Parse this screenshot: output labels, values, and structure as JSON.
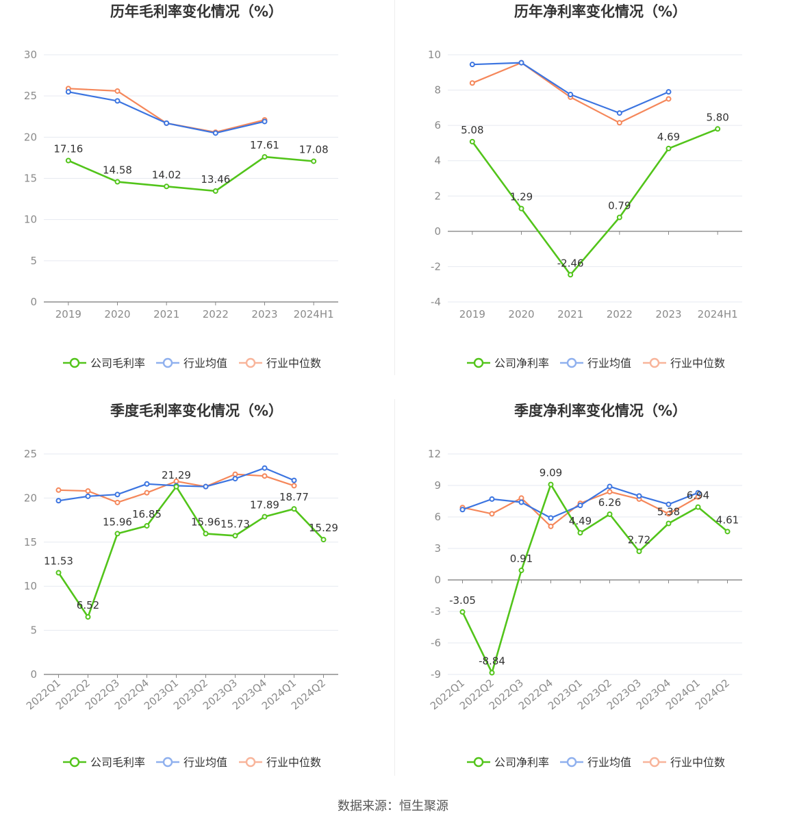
{
  "source": "数据来源：恒生聚源",
  "colors": {
    "company": "#52c41a",
    "avg": "#3b74e0",
    "median": "#f5875a"
  },
  "chart_data": [
    {
      "type": "line",
      "title": "历年毛利率变化情况（%）",
      "categories": [
        "2019",
        "2020",
        "2021",
        "2022",
        "2023",
        "2024H1"
      ],
      "ylim": [
        0,
        30
      ],
      "yticks": [
        0,
        5,
        10,
        15,
        20,
        25,
        30
      ],
      "grid": true,
      "legend_position": "bottom",
      "series": [
        {
          "name": "公司毛利率",
          "values": [
            17.16,
            14.58,
            14.02,
            13.46,
            17.61,
            17.08
          ],
          "labels": [
            "17.16",
            "14.58",
            "14.02",
            "13.46",
            "17.61",
            "17.08"
          ]
        },
        {
          "name": "行业均值",
          "values": [
            25.5,
            24.4,
            21.7,
            20.5,
            21.9,
            null
          ]
        },
        {
          "name": "行业中位数",
          "values": [
            25.9,
            25.6,
            21.7,
            20.6,
            22.1,
            null
          ]
        }
      ]
    },
    {
      "type": "line",
      "title": "历年净利率变化情况（%）",
      "categories": [
        "2019",
        "2020",
        "2021",
        "2022",
        "2023",
        "2024H1"
      ],
      "ylim": [
        -4,
        10
      ],
      "yticks": [
        -4,
        -2,
        0,
        2,
        4,
        6,
        8,
        10
      ],
      "grid": true,
      "legend_position": "bottom",
      "series": [
        {
          "name": "公司净利率",
          "values": [
            5.08,
            1.29,
            -2.46,
            0.79,
            4.69,
            5.8
          ],
          "labels": [
            "5.08",
            "1.29",
            "-2.46",
            "0.79",
            "4.69",
            "5.80"
          ]
        },
        {
          "name": "行业均值",
          "values": [
            9.45,
            9.55,
            7.75,
            6.7,
            7.9,
            null
          ]
        },
        {
          "name": "行业中位数",
          "values": [
            8.4,
            9.55,
            7.6,
            6.15,
            7.5,
            null
          ]
        }
      ]
    },
    {
      "type": "line",
      "title": "季度毛利率变化情况（%）",
      "categories": [
        "2022Q1",
        "2022Q2",
        "2022Q3",
        "2022Q4",
        "2023Q1",
        "2023Q2",
        "2023Q3",
        "2023Q4",
        "2024Q1",
        "2024Q2"
      ],
      "ylim": [
        0,
        25
      ],
      "yticks": [
        0,
        5,
        10,
        15,
        20,
        25
      ],
      "grid": true,
      "legend_position": "bottom",
      "series": [
        {
          "name": "公司毛利率",
          "values": [
            11.53,
            6.52,
            15.96,
            16.85,
            21.29,
            15.96,
            15.73,
            17.89,
            18.77,
            15.29
          ],
          "labels": [
            "11.53",
            "6.52",
            "15.96",
            "16.85",
            "21.29",
            "15.96",
            "15.73",
            "17.89",
            "18.77",
            "15.29"
          ]
        },
        {
          "name": "行业均值",
          "values": [
            19.7,
            20.2,
            20.4,
            21.6,
            21.4,
            21.3,
            22.2,
            23.4,
            22.0,
            null
          ]
        },
        {
          "name": "行业中位数",
          "values": [
            20.9,
            20.8,
            19.5,
            20.6,
            21.9,
            21.3,
            22.7,
            22.5,
            21.4,
            null
          ]
        }
      ]
    },
    {
      "type": "line",
      "title": "季度净利率变化情况（%）",
      "categories": [
        "2022Q1",
        "2022Q2",
        "2022Q3",
        "2022Q4",
        "2023Q1",
        "2023Q2",
        "2023Q3",
        "2023Q4",
        "2024Q1",
        "2024Q2"
      ],
      "ylim": [
        -9,
        12
      ],
      "yticks": [
        -9,
        -6,
        -3,
        0,
        3,
        6,
        9,
        12
      ],
      "grid": true,
      "legend_position": "bottom",
      "series": [
        {
          "name": "公司净利率",
          "values": [
            -3.05,
            -8.84,
            0.91,
            9.09,
            4.49,
            6.26,
            2.72,
            5.38,
            6.94,
            4.61
          ],
          "labels": [
            "-3.05",
            "-8.84",
            "0.91",
            "9.09",
            "4.49",
            "6.26",
            "2.72",
            "5.38",
            "6.94",
            "4.61"
          ]
        },
        {
          "name": "行业均值",
          "values": [
            6.7,
            7.7,
            7.4,
            5.9,
            7.1,
            8.9,
            8.0,
            7.2,
            8.3,
            null
          ]
        },
        {
          "name": "行业中位数",
          "values": [
            6.9,
            6.3,
            7.8,
            5.1,
            7.3,
            8.4,
            7.7,
            6.3,
            7.9,
            null
          ]
        }
      ]
    }
  ]
}
